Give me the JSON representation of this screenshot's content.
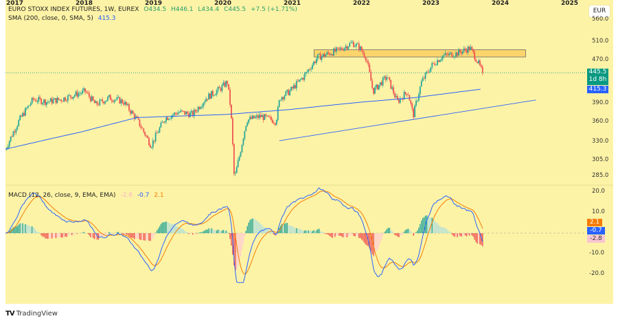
{
  "header": {
    "title": "EURO STOXX INDEX FUTURES, 1W, EUREX",
    "open": "O434.5",
    "high": "H446.1",
    "low": "L434.4",
    "close": "C445.5",
    "change": "+7.5 (+1.71%)"
  },
  "sma_legend": {
    "label": "SMA (200, close, 0, SMA, 5)",
    "value": "415.3"
  },
  "macd_legend": {
    "label": "MACD (12, 26, close, 9, EMA, EMA)",
    "hist": "-2.8",
    "macd": "-0.7",
    "signal": "2.1"
  },
  "currency_button": "EUR",
  "price_tags": {
    "last": "445.5",
    "countdown": "1d 8h",
    "sma": "415.3"
  },
  "macd_tags": {
    "signal": "2.1",
    "macd": "-0.7",
    "hist": "-2.8"
  },
  "branding": "TradingView",
  "colors": {
    "up": "#26a69a",
    "down": "#ef5350",
    "sma": "#2962ff",
    "macd": "#2962ff",
    "signal": "#f57c00",
    "last": "#089981",
    "background": "#fdf3a6"
  },
  "chart_data": {
    "type": "candlestick",
    "title": "EURO STOXX INDEX FUTURES, 1W, EUREX",
    "scale": "log",
    "y_ticks": [
      "560.0",
      "510.0",
      "470.0",
      "390.0",
      "360.0",
      "330.0",
      "305.0",
      "285.0"
    ],
    "x_ticks": [
      "2017",
      "2018",
      "2019",
      "2020",
      "2021",
      "2022",
      "2023",
      "2024",
      "2025"
    ],
    "price_keypoints": [
      [
        2016.9,
        320
      ],
      [
        2017.1,
        363
      ],
      [
        2017.3,
        397
      ],
      [
        2017.5,
        393
      ],
      [
        2017.7,
        397
      ],
      [
        2017.9,
        405
      ],
      [
        2018.05,
        411
      ],
      [
        2018.2,
        388
      ],
      [
        2018.4,
        400
      ],
      [
        2018.6,
        393
      ],
      [
        2018.8,
        363
      ],
      [
        2019.0,
        325
      ],
      [
        2019.2,
        366
      ],
      [
        2019.4,
        376
      ],
      [
        2019.6,
        372
      ],
      [
        2019.8,
        400
      ],
      [
        2020.0,
        416
      ],
      [
        2020.1,
        428
      ],
      [
        2020.15,
        379
      ],
      [
        2020.2,
        280
      ],
      [
        2020.28,
        313
      ],
      [
        2020.38,
        363
      ],
      [
        2020.58,
        369
      ],
      [
        2020.8,
        361
      ],
      [
        2020.86,
        400
      ],
      [
        2021.0,
        411
      ],
      [
        2021.2,
        438
      ],
      [
        2021.4,
        476
      ],
      [
        2021.7,
        491
      ],
      [
        2021.9,
        507
      ],
      [
        2022.0,
        498
      ],
      [
        2022.1,
        476
      ],
      [
        2022.2,
        411
      ],
      [
        2022.4,
        438
      ],
      [
        2022.55,
        393
      ],
      [
        2022.7,
        411
      ],
      [
        2022.78,
        370
      ],
      [
        2022.9,
        428
      ],
      [
        2023.05,
        460
      ],
      [
        2023.2,
        479
      ],
      [
        2023.4,
        484
      ],
      [
        2023.6,
        496
      ],
      [
        2023.7,
        470
      ],
      [
        2023.78,
        445.5
      ]
    ],
    "sma200_keypoints": [
      [
        2016.9,
        320
      ],
      [
        2018.0,
        345
      ],
      [
        2018.8,
        367
      ],
      [
        2020.1,
        372
      ],
      [
        2021.0,
        380
      ],
      [
        2022.0,
        392
      ],
      [
        2022.8,
        400
      ],
      [
        2023.78,
        415.3
      ]
    ],
    "trendline": [
      [
        2020.85,
        332
      ],
      [
        2024.55,
        396
      ]
    ],
    "resistance_zone": {
      "from": 2021.35,
      "to": 2024.4,
      "low": 477,
      "high": 492
    },
    "last_price": 445.5,
    "macd": {
      "y_ticks": [
        "20.0",
        "10.0",
        "-10.0",
        "-20.0"
      ],
      "range": [
        -24,
        22
      ],
      "last": {
        "macd": -0.7,
        "signal": 2.1,
        "hist": -2.8
      }
    }
  }
}
